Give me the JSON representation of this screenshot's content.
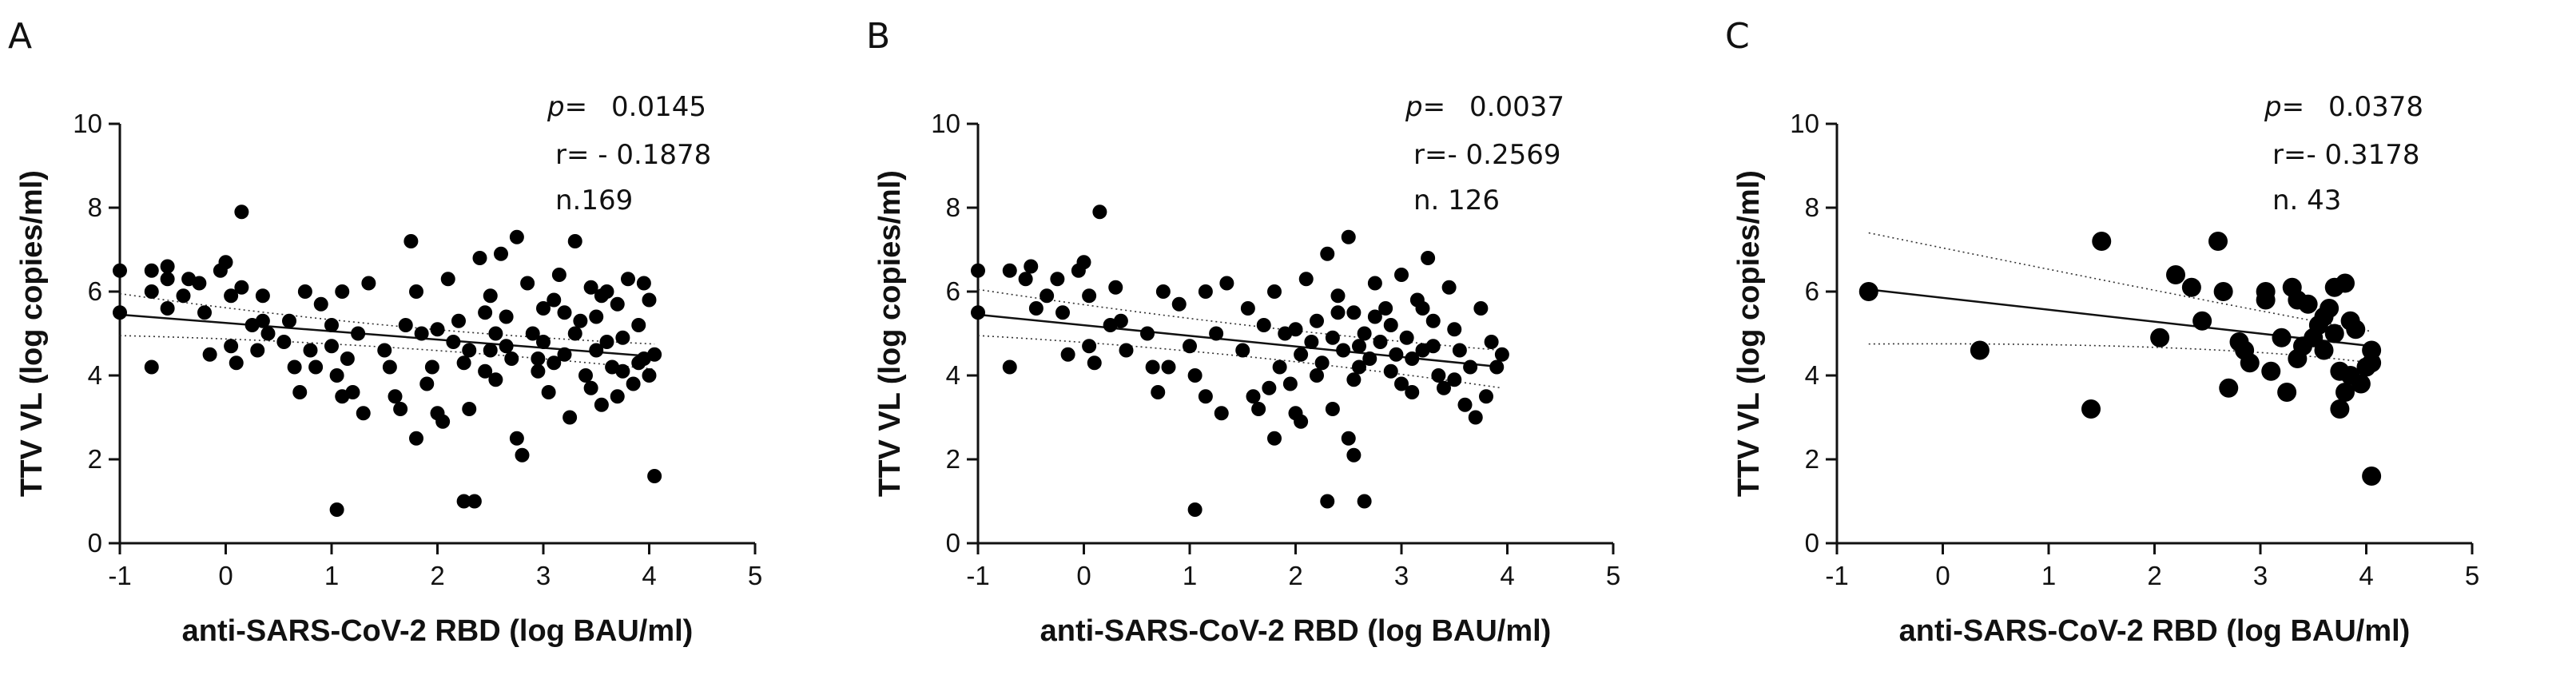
{
  "chart_data": [
    {
      "type": "scatter",
      "panel_label": "A",
      "xlabel": "anti-SARS-CoV-2 RBD (log BAU/ml)",
      "ylabel": "TTV VL (log copies/ml)",
      "xlim": [
        -1,
        5
      ],
      "ylim": [
        0,
        10
      ],
      "xticks": [
        "-1",
        "0",
        "1",
        "2",
        "3",
        "4",
        "5"
      ],
      "yticks": [
        "0",
        "2",
        "4",
        "6",
        "8",
        "10"
      ],
      "annotations": {
        "p_label": "p=",
        "p_value": "0.0145",
        "r_text": "r= - 0.1878",
        "n_text": "n.169"
      },
      "regression": {
        "x": [
          -1,
          4.05
        ],
        "y": [
          5.45,
          4.45
        ]
      },
      "ci_upper": {
        "x": [
          -1,
          1.5,
          4.05
        ],
        "y": [
          5.95,
          5.05,
          4.75
        ]
      },
      "ci_lower": {
        "x": [
          -1,
          1.5,
          4.05
        ],
        "y": [
          4.95,
          4.8,
          4.15
        ]
      },
      "points": [
        {
          "x": -1.0,
          "y": 6.5
        },
        {
          "x": -1.0,
          "y": 5.5
        },
        {
          "x": -0.7,
          "y": 6.5
        },
        {
          "x": -0.7,
          "y": 6.0
        },
        {
          "x": -0.7,
          "y": 4.2
        },
        {
          "x": -0.55,
          "y": 6.6
        },
        {
          "x": -0.55,
          "y": 6.3
        },
        {
          "x": -0.55,
          "y": 5.6
        },
        {
          "x": -0.4,
          "y": 5.9
        },
        {
          "x": -0.35,
          "y": 6.3
        },
        {
          "x": -0.25,
          "y": 6.2
        },
        {
          "x": -0.2,
          "y": 5.5
        },
        {
          "x": -0.15,
          "y": 4.5
        },
        {
          "x": -0.05,
          "y": 6.5
        },
        {
          "x": 0.0,
          "y": 6.7
        },
        {
          "x": 0.05,
          "y": 5.9
        },
        {
          "x": 0.05,
          "y": 4.7
        },
        {
          "x": 0.1,
          "y": 4.3
        },
        {
          "x": 0.15,
          "y": 7.9
        },
        {
          "x": 0.15,
          "y": 6.1
        },
        {
          "x": 0.25,
          "y": 5.2
        },
        {
          "x": 0.3,
          "y": 4.6
        },
        {
          "x": 0.35,
          "y": 5.9
        },
        {
          "x": 0.35,
          "y": 5.3
        },
        {
          "x": 0.4,
          "y": 5.0
        },
        {
          "x": 0.55,
          "y": 4.8
        },
        {
          "x": 0.6,
          "y": 5.3
        },
        {
          "x": 0.65,
          "y": 4.2
        },
        {
          "x": 0.7,
          "y": 3.6
        },
        {
          "x": 0.75,
          "y": 6.0
        },
        {
          "x": 0.8,
          "y": 4.6
        },
        {
          "x": 0.85,
          "y": 4.2
        },
        {
          "x": 0.9,
          "y": 5.7
        },
        {
          "x": 1.0,
          "y": 5.2
        },
        {
          "x": 1.0,
          "y": 4.7
        },
        {
          "x": 1.05,
          "y": 4.0
        },
        {
          "x": 1.1,
          "y": 6.0
        },
        {
          "x": 1.1,
          "y": 3.5
        },
        {
          "x": 1.15,
          "y": 4.4
        },
        {
          "x": 1.2,
          "y": 3.6
        },
        {
          "x": 1.25,
          "y": 5.0
        },
        {
          "x": 1.3,
          "y": 3.1
        },
        {
          "x": 1.35,
          "y": 6.2
        },
        {
          "x": 1.5,
          "y": 4.6
        },
        {
          "x": 1.55,
          "y": 4.2
        },
        {
          "x": 1.6,
          "y": 3.5
        },
        {
          "x": 1.65,
          "y": 3.2
        },
        {
          "x": 1.7,
          "y": 5.2
        },
        {
          "x": 1.75,
          "y": 7.2
        },
        {
          "x": 1.8,
          "y": 6.0
        },
        {
          "x": 1.8,
          "y": 2.5
        },
        {
          "x": 1.85,
          "y": 5.0
        },
        {
          "x": 1.9,
          "y": 3.8
        },
        {
          "x": 1.95,
          "y": 4.2
        },
        {
          "x": 2.0,
          "y": 5.1
        },
        {
          "x": 2.0,
          "y": 3.1
        },
        {
          "x": 2.05,
          "y": 2.9
        },
        {
          "x": 2.1,
          "y": 6.3
        },
        {
          "x": 2.15,
          "y": 4.8
        },
        {
          "x": 2.2,
          "y": 5.3
        },
        {
          "x": 2.25,
          "y": 4.3
        },
        {
          "x": 2.3,
          "y": 3.2
        },
        {
          "x": 2.35,
          "y": 1.0
        },
        {
          "x": 2.4,
          "y": 6.8
        },
        {
          "x": 2.45,
          "y": 5.5
        },
        {
          "x": 2.5,
          "y": 4.6
        },
        {
          "x": 2.55,
          "y": 3.9
        },
        {
          "x": 2.6,
          "y": 6.9
        },
        {
          "x": 2.65,
          "y": 4.7
        },
        {
          "x": 2.7,
          "y": 4.4
        },
        {
          "x": 2.75,
          "y": 7.3
        },
        {
          "x": 2.75,
          "y": 2.5
        },
        {
          "x": 2.8,
          "y": 2.1
        },
        {
          "x": 2.85,
          "y": 6.2
        },
        {
          "x": 2.9,
          "y": 5.0
        },
        {
          "x": 2.95,
          "y": 4.1
        },
        {
          "x": 3.0,
          "y": 4.8
        },
        {
          "x": 3.05,
          "y": 3.6
        },
        {
          "x": 3.1,
          "y": 5.8
        },
        {
          "x": 3.15,
          "y": 6.4
        },
        {
          "x": 3.2,
          "y": 4.5
        },
        {
          "x": 3.25,
          "y": 3.0
        },
        {
          "x": 3.3,
          "y": 7.2
        },
        {
          "x": 3.35,
          "y": 5.3
        },
        {
          "x": 3.4,
          "y": 4.0
        },
        {
          "x": 3.45,
          "y": 6.1
        },
        {
          "x": 3.5,
          "y": 5.4
        },
        {
          "x": 3.5,
          "y": 4.6
        },
        {
          "x": 3.55,
          "y": 3.3
        },
        {
          "x": 3.6,
          "y": 6.0
        },
        {
          "x": 3.65,
          "y": 4.2
        },
        {
          "x": 3.7,
          "y": 5.7
        },
        {
          "x": 3.75,
          "y": 4.9
        },
        {
          "x": 3.8,
          "y": 6.3
        },
        {
          "x": 3.85,
          "y": 3.8
        },
        {
          "x": 3.9,
          "y": 5.2
        },
        {
          "x": 3.95,
          "y": 4.4
        },
        {
          "x": 4.0,
          "y": 4.0
        },
        {
          "x": 4.0,
          "y": 5.8
        },
        {
          "x": 4.05,
          "y": 4.5
        },
        {
          "x": 4.05,
          "y": 1.6
        },
        {
          "x": 2.25,
          "y": 1.0
        },
        {
          "x": 1.05,
          "y": 0.8
        },
        {
          "x": 2.5,
          "y": 5.9
        },
        {
          "x": 3.0,
          "y": 5.6
        },
        {
          "x": 3.3,
          "y": 5.0
        },
        {
          "x": 3.6,
          "y": 4.8
        },
        {
          "x": 3.9,
          "y": 4.3
        },
        {
          "x": 3.45,
          "y": 3.7
        },
        {
          "x": 2.95,
          "y": 4.4
        },
        {
          "x": 2.3,
          "y": 4.6
        },
        {
          "x": 2.55,
          "y": 5.0
        },
        {
          "x": 3.1,
          "y": 4.3
        },
        {
          "x": 3.7,
          "y": 3.5
        },
        {
          "x": 3.95,
          "y": 6.2
        },
        {
          "x": 2.45,
          "y": 4.1
        },
        {
          "x": 2.65,
          "y": 5.4
        },
        {
          "x": 3.2,
          "y": 5.5
        },
        {
          "x": 3.55,
          "y": 5.9
        },
        {
          "x": 3.75,
          "y": 4.1
        }
      ]
    },
    {
      "type": "scatter",
      "panel_label": "B",
      "xlabel": "anti-SARS-CoV-2 RBD (log BAU/ml)",
      "ylabel": "TTV VL (log copies/ml)",
      "xlim": [
        -1,
        5
      ],
      "ylim": [
        0,
        10
      ],
      "xticks": [
        "-1",
        "0",
        "1",
        "2",
        "3",
        "4",
        "5"
      ],
      "yticks": [
        "0",
        "2",
        "4",
        "6",
        "8",
        "10"
      ],
      "annotations": {
        "p_label": "p=",
        "p_value": "0.0037",
        "r_text": "r=- 0.2569",
        "n_text": "n.  126"
      },
      "regression": {
        "x": [
          -1,
          3.95
        ],
        "y": [
          5.45,
          4.2
        ]
      },
      "ci_upper": {
        "x": [
          -1,
          1.5,
          3.95
        ],
        "y": [
          6.05,
          5.1,
          4.6
        ]
      },
      "ci_lower": {
        "x": [
          -1,
          1.5,
          3.95
        ],
        "y": [
          4.95,
          4.6,
          3.7
        ]
      },
      "points": [
        {
          "x": -1.0,
          "y": 6.5
        },
        {
          "x": -1.0,
          "y": 5.5
        },
        {
          "x": -0.7,
          "y": 6.5
        },
        {
          "x": -0.7,
          "y": 4.2
        },
        {
          "x": -0.55,
          "y": 6.3
        },
        {
          "x": -0.5,
          "y": 6.6
        },
        {
          "x": -0.45,
          "y": 5.6
        },
        {
          "x": -0.35,
          "y": 5.9
        },
        {
          "x": -0.25,
          "y": 6.3
        },
        {
          "x": -0.2,
          "y": 5.5
        },
        {
          "x": -0.15,
          "y": 4.5
        },
        {
          "x": -0.05,
          "y": 6.5
        },
        {
          "x": 0.0,
          "y": 6.7
        },
        {
          "x": 0.05,
          "y": 5.9
        },
        {
          "x": 0.05,
          "y": 4.7
        },
        {
          "x": 0.1,
          "y": 4.3
        },
        {
          "x": 0.15,
          "y": 7.9
        },
        {
          "x": 0.25,
          "y": 5.2
        },
        {
          "x": 0.3,
          "y": 6.1
        },
        {
          "x": 0.35,
          "y": 5.3
        },
        {
          "x": 0.4,
          "y": 4.6
        },
        {
          "x": 0.6,
          "y": 5.0
        },
        {
          "x": 0.65,
          "y": 4.2
        },
        {
          "x": 0.7,
          "y": 3.6
        },
        {
          "x": 0.75,
          "y": 6.0
        },
        {
          "x": 0.8,
          "y": 4.2
        },
        {
          "x": 0.9,
          "y": 5.7
        },
        {
          "x": 1.0,
          "y": 4.7
        },
        {
          "x": 1.05,
          "y": 4.0
        },
        {
          "x": 1.05,
          "y": 0.8
        },
        {
          "x": 1.15,
          "y": 6.0
        },
        {
          "x": 1.15,
          "y": 3.5
        },
        {
          "x": 1.25,
          "y": 5.0
        },
        {
          "x": 1.3,
          "y": 3.1
        },
        {
          "x": 1.35,
          "y": 6.2
        },
        {
          "x": 1.5,
          "y": 4.6
        },
        {
          "x": 1.6,
          "y": 3.5
        },
        {
          "x": 1.65,
          "y": 3.2
        },
        {
          "x": 1.7,
          "y": 5.2
        },
        {
          "x": 1.8,
          "y": 6.0
        },
        {
          "x": 1.8,
          "y": 2.5
        },
        {
          "x": 1.85,
          "y": 4.2
        },
        {
          "x": 1.9,
          "y": 5.0
        },
        {
          "x": 1.95,
          "y": 3.8
        },
        {
          "x": 2.0,
          "y": 5.1
        },
        {
          "x": 2.0,
          "y": 3.1
        },
        {
          "x": 2.05,
          "y": 2.9
        },
        {
          "x": 2.1,
          "y": 6.3
        },
        {
          "x": 2.15,
          "y": 4.8
        },
        {
          "x": 2.2,
          "y": 5.3
        },
        {
          "x": 2.25,
          "y": 4.3
        },
        {
          "x": 2.3,
          "y": 6.9
        },
        {
          "x": 2.3,
          "y": 1.0
        },
        {
          "x": 2.35,
          "y": 3.2
        },
        {
          "x": 2.4,
          "y": 5.5
        },
        {
          "x": 2.45,
          "y": 4.6
        },
        {
          "x": 2.5,
          "y": 7.3
        },
        {
          "x": 2.5,
          "y": 2.5
        },
        {
          "x": 2.55,
          "y": 3.9
        },
        {
          "x": 2.55,
          "y": 2.1
        },
        {
          "x": 2.6,
          "y": 4.7
        },
        {
          "x": 2.65,
          "y": 5.0
        },
        {
          "x": 2.65,
          "y": 1.0
        },
        {
          "x": 2.7,
          "y": 4.4
        },
        {
          "x": 2.75,
          "y": 6.2
        },
        {
          "x": 2.8,
          "y": 4.8
        },
        {
          "x": 2.85,
          "y": 5.6
        },
        {
          "x": 2.9,
          "y": 4.1
        },
        {
          "x": 2.95,
          "y": 4.5
        },
        {
          "x": 3.0,
          "y": 6.4
        },
        {
          "x": 3.05,
          "y": 4.9
        },
        {
          "x": 3.1,
          "y": 3.6
        },
        {
          "x": 3.15,
          "y": 5.8
        },
        {
          "x": 3.2,
          "y": 4.6
        },
        {
          "x": 3.25,
          "y": 6.8
        },
        {
          "x": 3.3,
          "y": 5.3
        },
        {
          "x": 3.35,
          "y": 4.0
        },
        {
          "x": 3.4,
          "y": 3.7
        },
        {
          "x": 3.45,
          "y": 6.1
        },
        {
          "x": 3.5,
          "y": 5.1
        },
        {
          "x": 3.55,
          "y": 4.6
        },
        {
          "x": 3.6,
          "y": 3.3
        },
        {
          "x": 3.65,
          "y": 4.2
        },
        {
          "x": 3.7,
          "y": 3.0
        },
        {
          "x": 3.75,
          "y": 5.6
        },
        {
          "x": 3.8,
          "y": 3.5
        },
        {
          "x": 3.85,
          "y": 4.8
        },
        {
          "x": 3.9,
          "y": 4.2
        },
        {
          "x": 3.95,
          "y": 4.5
        },
        {
          "x": 2.2,
          "y": 4.0
        },
        {
          "x": 2.4,
          "y": 5.9
        },
        {
          "x": 2.6,
          "y": 4.2
        },
        {
          "x": 2.9,
          "y": 5.2
        },
        {
          "x": 3.1,
          "y": 4.4
        },
        {
          "x": 3.3,
          "y": 4.7
        },
        {
          "x": 3.5,
          "y": 3.9
        },
        {
          "x": 2.75,
          "y": 5.4
        },
        {
          "x": 2.05,
          "y": 4.5
        },
        {
          "x": 1.75,
          "y": 3.7
        },
        {
          "x": 2.35,
          "y": 4.9
        },
        {
          "x": 3.0,
          "y": 3.8
        },
        {
          "x": 3.2,
          "y": 5.6
        },
        {
          "x": 2.55,
          "y": 5.5
        },
        {
          "x": 1.55,
          "y": 5.6
        }
      ]
    },
    {
      "type": "scatter",
      "panel_label": "C",
      "xlabel": "anti-SARS-CoV-2 RBD (log BAU/ml)",
      "ylabel": "TTV VL (log copies/ml)",
      "xlim": [
        -1,
        5
      ],
      "ylim": [
        0,
        10
      ],
      "xticks": [
        "-1",
        "0",
        "1",
        "2",
        "3",
        "4",
        "5"
      ],
      "yticks": [
        "0",
        "2",
        "4",
        "6",
        "8",
        "10"
      ],
      "annotations": {
        "p_label": "p=",
        "p_value": "0.0378",
        "r_text": "r=- 0.3178",
        "n_text": "n.  43"
      },
      "regression": {
        "x": [
          -0.7,
          4.05
        ],
        "y": [
          6.05,
          4.7
        ]
      },
      "ci_upper": {
        "x": [
          -0.7,
          2.5,
          4.05
        ],
        "y": [
          7.4,
          5.75,
          5.05
        ]
      },
      "ci_lower": {
        "x": [
          -0.7,
          2.5,
          4.05
        ],
        "y": [
          4.75,
          4.8,
          4.3
        ]
      },
      "points": [
        {
          "x": -0.7,
          "y": 6.0
        },
        {
          "x": 0.35,
          "y": 4.6
        },
        {
          "x": 1.4,
          "y": 3.2
        },
        {
          "x": 1.5,
          "y": 7.2
        },
        {
          "x": 2.05,
          "y": 4.9
        },
        {
          "x": 2.2,
          "y": 6.4
        },
        {
          "x": 2.35,
          "y": 6.1
        },
        {
          "x": 2.45,
          "y": 5.3
        },
        {
          "x": 2.6,
          "y": 7.2
        },
        {
          "x": 2.65,
          "y": 6.0
        },
        {
          "x": 2.7,
          "y": 3.7
        },
        {
          "x": 2.8,
          "y": 4.8
        },
        {
          "x": 2.85,
          "y": 4.6
        },
        {
          "x": 2.9,
          "y": 4.3
        },
        {
          "x": 3.05,
          "y": 5.8
        },
        {
          "x": 3.05,
          "y": 6.0
        },
        {
          "x": 3.1,
          "y": 4.1
        },
        {
          "x": 3.2,
          "y": 4.9
        },
        {
          "x": 3.25,
          "y": 3.6
        },
        {
          "x": 3.3,
          "y": 6.1
        },
        {
          "x": 3.35,
          "y": 5.8
        },
        {
          "x": 3.35,
          "y": 4.4
        },
        {
          "x": 3.4,
          "y": 4.7
        },
        {
          "x": 3.45,
          "y": 5.7
        },
        {
          "x": 3.5,
          "y": 4.9
        },
        {
          "x": 3.55,
          "y": 5.2
        },
        {
          "x": 3.6,
          "y": 4.6
        },
        {
          "x": 3.65,
          "y": 5.6
        },
        {
          "x": 3.7,
          "y": 5.0
        },
        {
          "x": 3.7,
          "y": 6.1
        },
        {
          "x": 3.75,
          "y": 4.1
        },
        {
          "x": 3.75,
          "y": 3.2
        },
        {
          "x": 3.8,
          "y": 6.2
        },
        {
          "x": 3.8,
          "y": 3.6
        },
        {
          "x": 3.85,
          "y": 5.3
        },
        {
          "x": 3.85,
          "y": 4.0
        },
        {
          "x": 3.9,
          "y": 5.1
        },
        {
          "x": 3.95,
          "y": 3.8
        },
        {
          "x": 4.0,
          "y": 4.2
        },
        {
          "x": 4.05,
          "y": 4.6
        },
        {
          "x": 4.05,
          "y": 4.3
        },
        {
          "x": 4.05,
          "y": 1.6
        },
        {
          "x": 3.6,
          "y": 5.4
        }
      ]
    }
  ]
}
